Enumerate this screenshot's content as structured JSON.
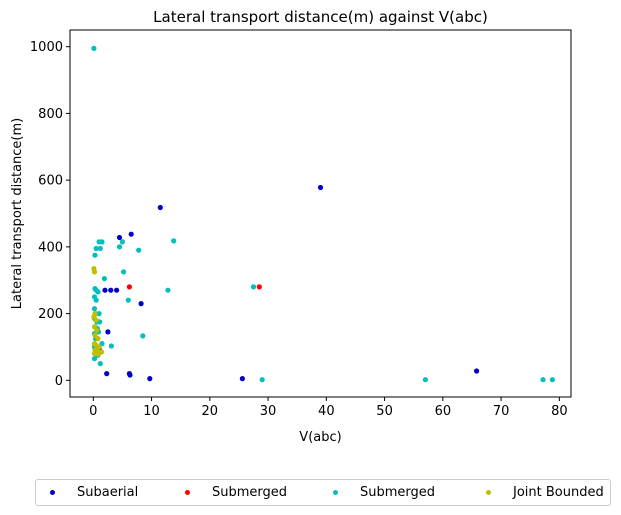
{
  "chart_data": {
    "type": "scatter",
    "title": "Lateral transport distance(m) against V(abc)",
    "xlabel": "V(abc)",
    "ylabel": "Lateral transport distance(m)",
    "xlim": [
      -4,
      82
    ],
    "ylim": [
      -50,
      1050
    ],
    "xticks": [
      "0",
      "10",
      "20",
      "30",
      "40",
      "50",
      "60",
      "70",
      "80"
    ],
    "yticks": [
      "0",
      "200",
      "400",
      "600",
      "800",
      "1000"
    ],
    "grid": false,
    "legend_position": "bottom-outside",
    "series": [
      {
        "name": "Subaerial",
        "color": "#0000cc",
        "points": [
          [
            11.5,
            518
          ],
          [
            39,
            578
          ],
          [
            4.5,
            428
          ],
          [
            6.5,
            438
          ],
          [
            2,
            270
          ],
          [
            3,
            270
          ],
          [
            4,
            270
          ],
          [
            8.2,
            230
          ],
          [
            2.5,
            145
          ],
          [
            1,
            95
          ],
          [
            2.3,
            20
          ],
          [
            6.2,
            20
          ],
          [
            6.3,
            16
          ],
          [
            9.7,
            5
          ],
          [
            25.6,
            5
          ],
          [
            65.8,
            28
          ]
        ]
      },
      {
        "name": "Submerged",
        "color": "#ff0000",
        "points": [
          [
            6.2,
            280
          ],
          [
            28.5,
            280
          ]
        ]
      },
      {
        "name": "Submerged",
        "color": "#00bfbf",
        "points": [
          [
            0.1,
            995
          ],
          [
            1,
            415
          ],
          [
            1.5,
            415
          ],
          [
            0.5,
            395
          ],
          [
            1.2,
            395
          ],
          [
            5,
            415
          ],
          [
            4.5,
            400
          ],
          [
            7.8,
            390
          ],
          [
            13.8,
            418
          ],
          [
            0.3,
            375
          ],
          [
            5.2,
            325
          ],
          [
            1.9,
            305
          ],
          [
            0.3,
            275
          ],
          [
            0.5,
            270
          ],
          [
            0.8,
            265
          ],
          [
            6,
            240
          ],
          [
            12.8,
            270
          ],
          [
            27.5,
            280
          ],
          [
            0.2,
            250
          ],
          [
            0.5,
            240
          ],
          [
            0.2,
            215
          ],
          [
            0.4,
            200
          ],
          [
            1,
            200
          ],
          [
            0.2,
            185
          ],
          [
            0.6,
            175
          ],
          [
            1.1,
            175
          ],
          [
            0.3,
            160
          ],
          [
            0.7,
            155
          ],
          [
            0.2,
            140
          ],
          [
            0.9,
            145
          ],
          [
            8.5,
            133
          ],
          [
            0.4,
            125
          ],
          [
            1.5,
            110
          ],
          [
            3.1,
            103
          ],
          [
            0.2,
            100
          ],
          [
            0.6,
            95
          ],
          [
            0.3,
            80
          ],
          [
            0.8,
            75
          ],
          [
            0.2,
            65
          ],
          [
            1.2,
            50
          ],
          [
            29,
            2
          ],
          [
            57,
            2
          ],
          [
            77.2,
            2
          ],
          [
            78.8,
            2
          ]
        ]
      },
      {
        "name": "Joint Bounded",
        "color": "#bfbf00",
        "points": [
          [
            0.1,
            335
          ],
          [
            0.2,
            325
          ],
          [
            0.3,
            200
          ],
          [
            0.1,
            190
          ],
          [
            0.5,
            180
          ],
          [
            0.2,
            160
          ],
          [
            0.6,
            150
          ],
          [
            0.3,
            135
          ],
          [
            0.8,
            125
          ],
          [
            0.2,
            110
          ],
          [
            0.5,
            105
          ],
          [
            1,
            100
          ],
          [
            0.3,
            90
          ],
          [
            0.7,
            88
          ],
          [
            1.4,
            85
          ],
          [
            0.2,
            80
          ],
          [
            0.9,
            78
          ]
        ]
      }
    ]
  }
}
